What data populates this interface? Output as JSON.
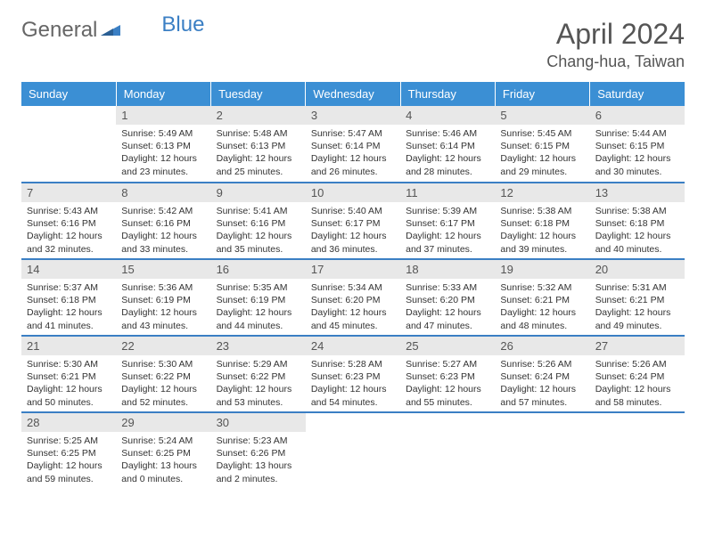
{
  "logo": {
    "text1": "General",
    "text2": "Blue"
  },
  "header": {
    "month": "April 2024",
    "location": "Chang-hua, Taiwan"
  },
  "weekdays": [
    "Sunday",
    "Monday",
    "Tuesday",
    "Wednesday",
    "Thursday",
    "Friday",
    "Saturday"
  ],
  "colors": {
    "header_bg": "#3b8fd4",
    "header_text": "#ffffff",
    "daynum_bg": "#e8e8e8",
    "row_border": "#3b7fc4",
    "text": "#333333",
    "title": "#555555"
  },
  "fonts": {
    "title_size": 32,
    "location_size": 18,
    "weekday_size": 13,
    "daynum_size": 13,
    "body_size": 10.5
  },
  "weeks": [
    [
      {
        "n": "",
        "sr": "",
        "ss": "",
        "dl": ""
      },
      {
        "n": "1",
        "sr": "5:49 AM",
        "ss": "6:13 PM",
        "dl": "12 hours and 23 minutes."
      },
      {
        "n": "2",
        "sr": "5:48 AM",
        "ss": "6:13 PM",
        "dl": "12 hours and 25 minutes."
      },
      {
        "n": "3",
        "sr": "5:47 AM",
        "ss": "6:14 PM",
        "dl": "12 hours and 26 minutes."
      },
      {
        "n": "4",
        "sr": "5:46 AM",
        "ss": "6:14 PM",
        "dl": "12 hours and 28 minutes."
      },
      {
        "n": "5",
        "sr": "5:45 AM",
        "ss": "6:15 PM",
        "dl": "12 hours and 29 minutes."
      },
      {
        "n": "6",
        "sr": "5:44 AM",
        "ss": "6:15 PM",
        "dl": "12 hours and 30 minutes."
      }
    ],
    [
      {
        "n": "7",
        "sr": "5:43 AM",
        "ss": "6:16 PM",
        "dl": "12 hours and 32 minutes."
      },
      {
        "n": "8",
        "sr": "5:42 AM",
        "ss": "6:16 PM",
        "dl": "12 hours and 33 minutes."
      },
      {
        "n": "9",
        "sr": "5:41 AM",
        "ss": "6:16 PM",
        "dl": "12 hours and 35 minutes."
      },
      {
        "n": "10",
        "sr": "5:40 AM",
        "ss": "6:17 PM",
        "dl": "12 hours and 36 minutes."
      },
      {
        "n": "11",
        "sr": "5:39 AM",
        "ss": "6:17 PM",
        "dl": "12 hours and 37 minutes."
      },
      {
        "n": "12",
        "sr": "5:38 AM",
        "ss": "6:18 PM",
        "dl": "12 hours and 39 minutes."
      },
      {
        "n": "13",
        "sr": "5:38 AM",
        "ss": "6:18 PM",
        "dl": "12 hours and 40 minutes."
      }
    ],
    [
      {
        "n": "14",
        "sr": "5:37 AM",
        "ss": "6:18 PM",
        "dl": "12 hours and 41 minutes."
      },
      {
        "n": "15",
        "sr": "5:36 AM",
        "ss": "6:19 PM",
        "dl": "12 hours and 43 minutes."
      },
      {
        "n": "16",
        "sr": "5:35 AM",
        "ss": "6:19 PM",
        "dl": "12 hours and 44 minutes."
      },
      {
        "n": "17",
        "sr": "5:34 AM",
        "ss": "6:20 PM",
        "dl": "12 hours and 45 minutes."
      },
      {
        "n": "18",
        "sr": "5:33 AM",
        "ss": "6:20 PM",
        "dl": "12 hours and 47 minutes."
      },
      {
        "n": "19",
        "sr": "5:32 AM",
        "ss": "6:21 PM",
        "dl": "12 hours and 48 minutes."
      },
      {
        "n": "20",
        "sr": "5:31 AM",
        "ss": "6:21 PM",
        "dl": "12 hours and 49 minutes."
      }
    ],
    [
      {
        "n": "21",
        "sr": "5:30 AM",
        "ss": "6:21 PM",
        "dl": "12 hours and 50 minutes."
      },
      {
        "n": "22",
        "sr": "5:30 AM",
        "ss": "6:22 PM",
        "dl": "12 hours and 52 minutes."
      },
      {
        "n": "23",
        "sr": "5:29 AM",
        "ss": "6:22 PM",
        "dl": "12 hours and 53 minutes."
      },
      {
        "n": "24",
        "sr": "5:28 AM",
        "ss": "6:23 PM",
        "dl": "12 hours and 54 minutes."
      },
      {
        "n": "25",
        "sr": "5:27 AM",
        "ss": "6:23 PM",
        "dl": "12 hours and 55 minutes."
      },
      {
        "n": "26",
        "sr": "5:26 AM",
        "ss": "6:24 PM",
        "dl": "12 hours and 57 minutes."
      },
      {
        "n": "27",
        "sr": "5:26 AM",
        "ss": "6:24 PM",
        "dl": "12 hours and 58 minutes."
      }
    ],
    [
      {
        "n": "28",
        "sr": "5:25 AM",
        "ss": "6:25 PM",
        "dl": "12 hours and 59 minutes."
      },
      {
        "n": "29",
        "sr": "5:24 AM",
        "ss": "6:25 PM",
        "dl": "13 hours and 0 minutes."
      },
      {
        "n": "30",
        "sr": "5:23 AM",
        "ss": "6:26 PM",
        "dl": "13 hours and 2 minutes."
      },
      {
        "n": "",
        "sr": "",
        "ss": "",
        "dl": ""
      },
      {
        "n": "",
        "sr": "",
        "ss": "",
        "dl": ""
      },
      {
        "n": "",
        "sr": "",
        "ss": "",
        "dl": ""
      },
      {
        "n": "",
        "sr": "",
        "ss": "",
        "dl": ""
      }
    ]
  ],
  "labels": {
    "sunrise": "Sunrise: ",
    "sunset": "Sunset: ",
    "daylight": "Daylight: "
  }
}
